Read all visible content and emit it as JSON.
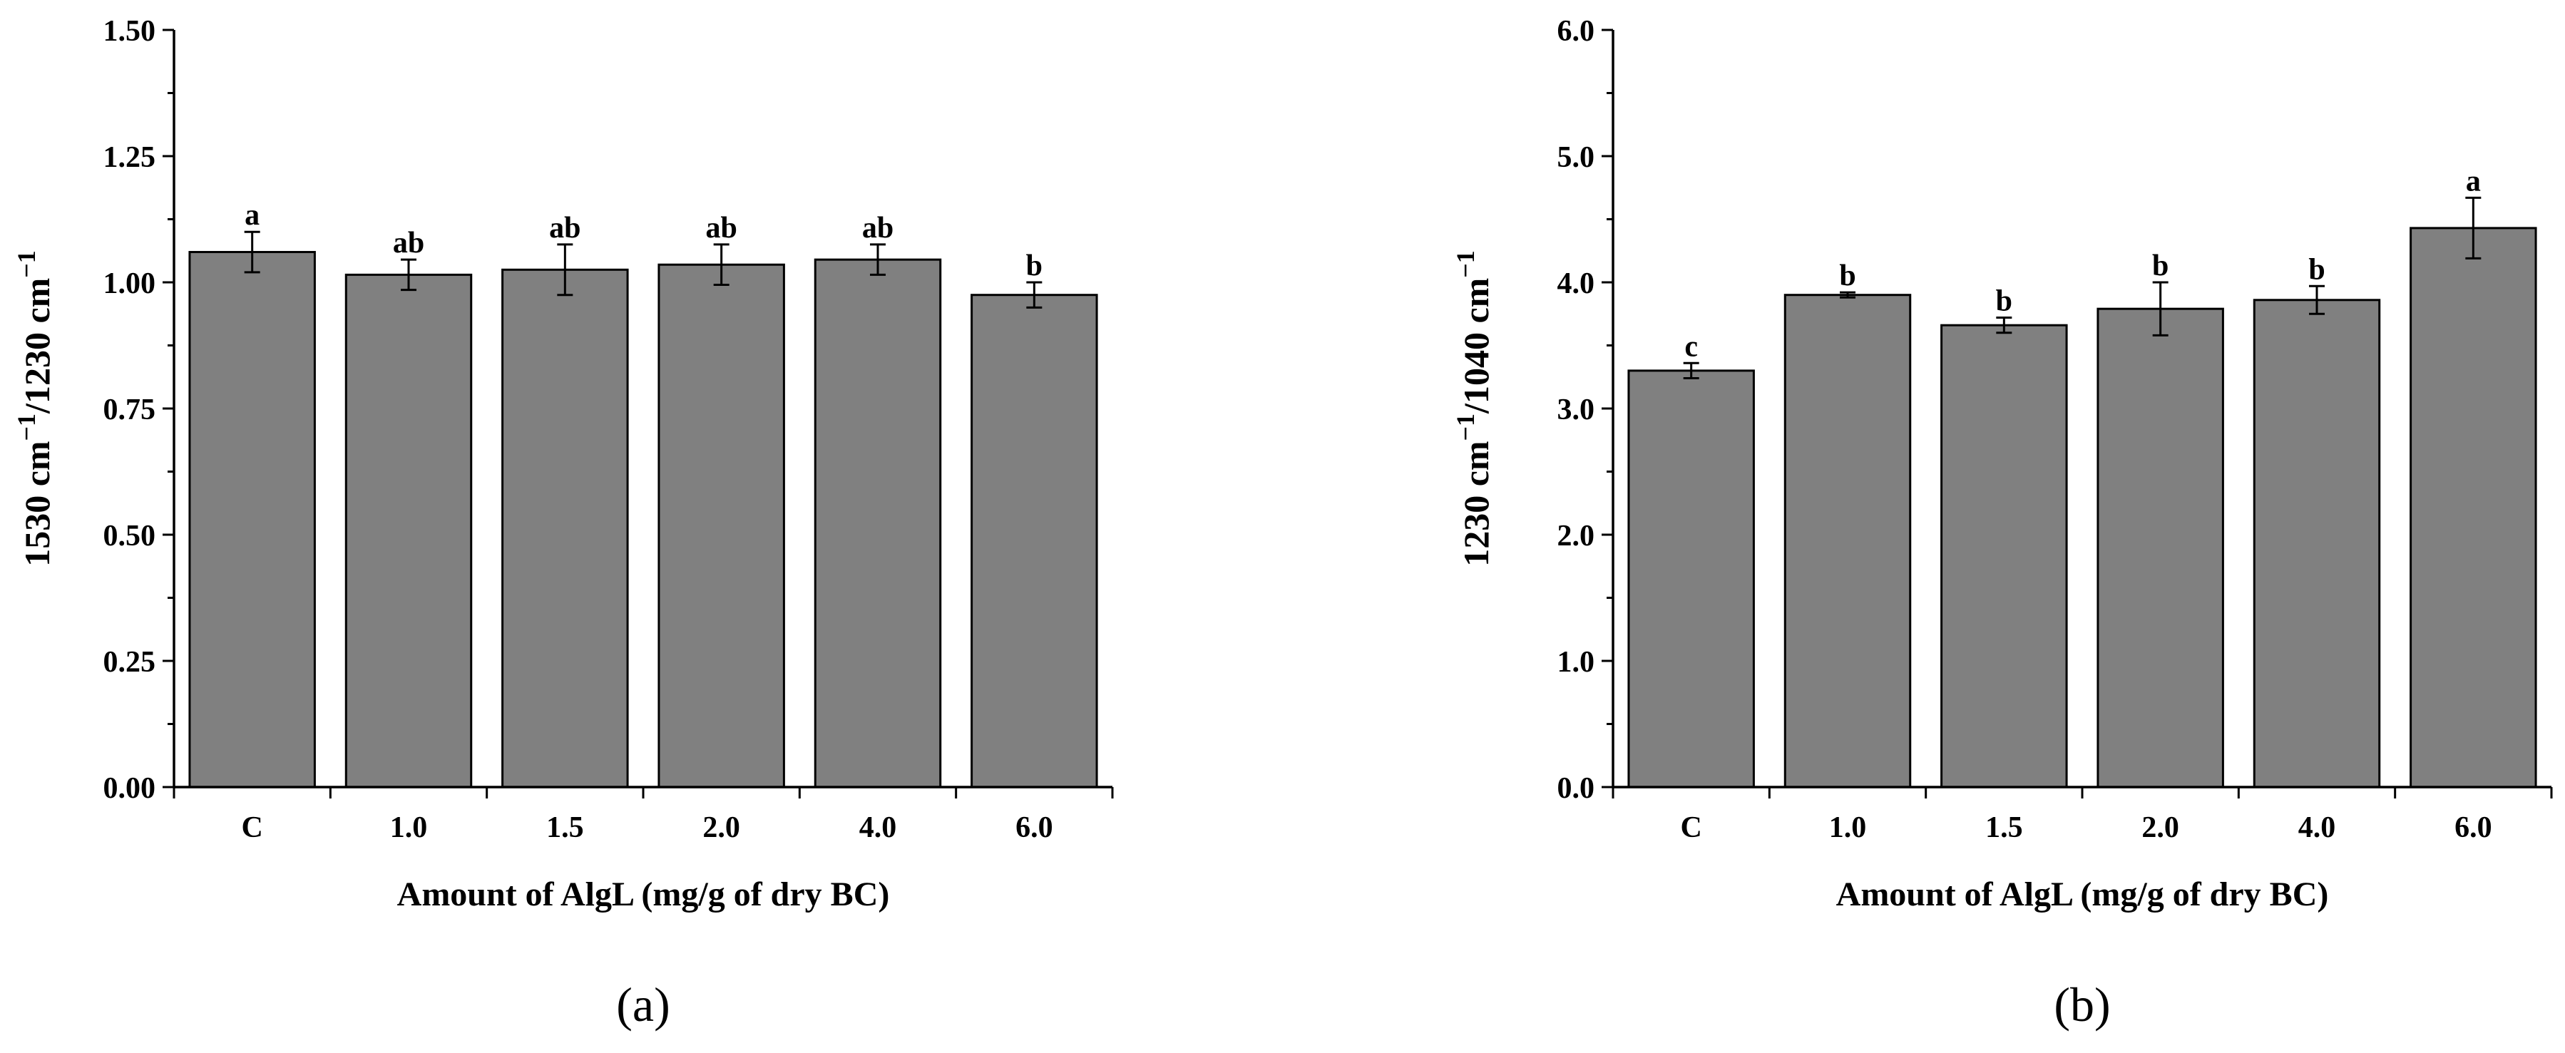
{
  "chart_data": [
    {
      "type": "bar",
      "panel_label": "(a)",
      "categories": [
        "C",
        "1.0",
        "1.5",
        "2.0",
        "4.0",
        "6.0"
      ],
      "values": [
        1.06,
        1.015,
        1.025,
        1.035,
        1.045,
        0.975
      ],
      "errors": [
        0.04,
        0.03,
        0.05,
        0.04,
        0.03,
        0.025
      ],
      "significance_letters": [
        "a",
        "ab",
        "ab",
        "ab",
        "ab",
        "b"
      ],
      "xlabel": "Amount of AlgL (mg/g of dry BC)",
      "ylabel": {
        "pre": "1530 cm",
        "sup1": "−1",
        "mid": "/1230 cm",
        "sup2": "−1"
      },
      "ylim": [
        0,
        1.5
      ],
      "yticks": [
        0,
        0.25,
        0.5,
        0.75,
        1.0,
        1.25,
        1.5
      ],
      "ytick_labels": [
        "0.00",
        "0.25",
        "0.50",
        "0.75",
        "1.00",
        "1.25",
        "1.50"
      ],
      "bar_color": "#808080"
    },
    {
      "type": "bar",
      "panel_label": "(b)",
      "categories": [
        "C",
        "1.0",
        "1.5",
        "2.0",
        "4.0",
        "6.0"
      ],
      "values": [
        3.3,
        3.9,
        3.66,
        3.79,
        3.86,
        4.43
      ],
      "errors": [
        0.06,
        0.02,
        0.06,
        0.21,
        0.11,
        0.24
      ],
      "significance_letters": [
        "c",
        "b",
        "b",
        "b",
        "b",
        "a"
      ],
      "xlabel": "Amount of AlgL (mg/g of dry BC)",
      "ylabel": {
        "pre": "1230 cm",
        "sup1": "−1",
        "mid": "/1040 cm",
        "sup2": "−1"
      },
      "ylim": [
        0,
        6
      ],
      "yticks": [
        0,
        1,
        2,
        3,
        4,
        5,
        6
      ],
      "ytick_labels": [
        "0.0",
        "1.0",
        "2.0",
        "3.0",
        "4.0",
        "5.0",
        "6.0"
      ],
      "bar_color": "#808080"
    }
  ]
}
